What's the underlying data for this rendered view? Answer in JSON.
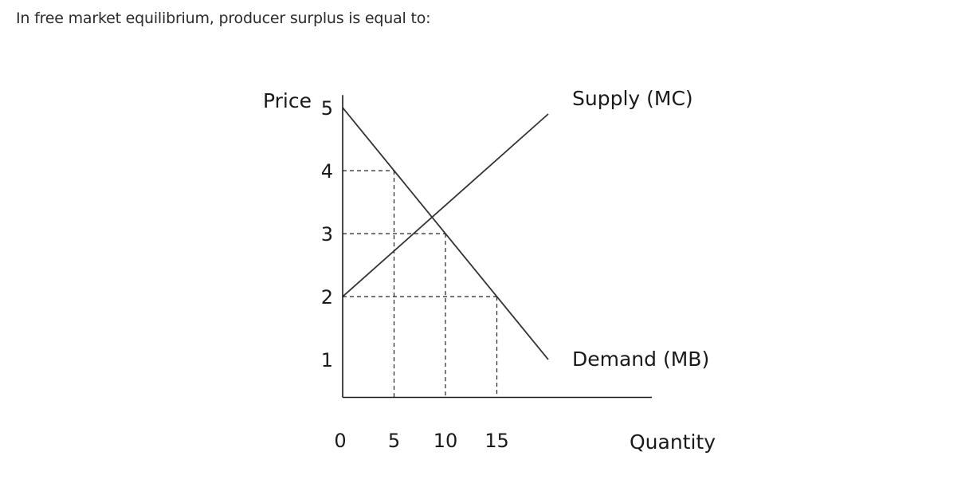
{
  "question": {
    "text": "In free market equilibrium, producer surplus is equal to:"
  },
  "chart_data": {
    "type": "line",
    "ylabel": "Price",
    "xlabel": "Quantity",
    "x_ticks": [
      "0",
      "5",
      "10",
      "15"
    ],
    "x_tick_values": [
      0,
      5,
      10,
      15
    ],
    "y_ticks": [
      "1",
      "2",
      "3",
      "4",
      "5"
    ],
    "y_tick_values": [
      1,
      2,
      3,
      4,
      5
    ],
    "xlim": [
      0,
      30
    ],
    "ylim": [
      0.4,
      5.1
    ],
    "series": [
      {
        "name": "Supply (MC)",
        "x": [
          0,
          20
        ],
        "y": [
          2,
          4.9
        ]
      },
      {
        "name": "Demand (MB)",
        "x": [
          0,
          20
        ],
        "y": [
          5,
          1
        ]
      }
    ],
    "reference_points": [
      {
        "x": 5,
        "y": 4
      },
      {
        "x": 10,
        "y": 3
      },
      {
        "x": 15,
        "y": 2
      }
    ],
    "grid": false,
    "colors": {
      "lines": "#333333",
      "axes": "#1a1a1a",
      "guides": "#222222"
    }
  }
}
